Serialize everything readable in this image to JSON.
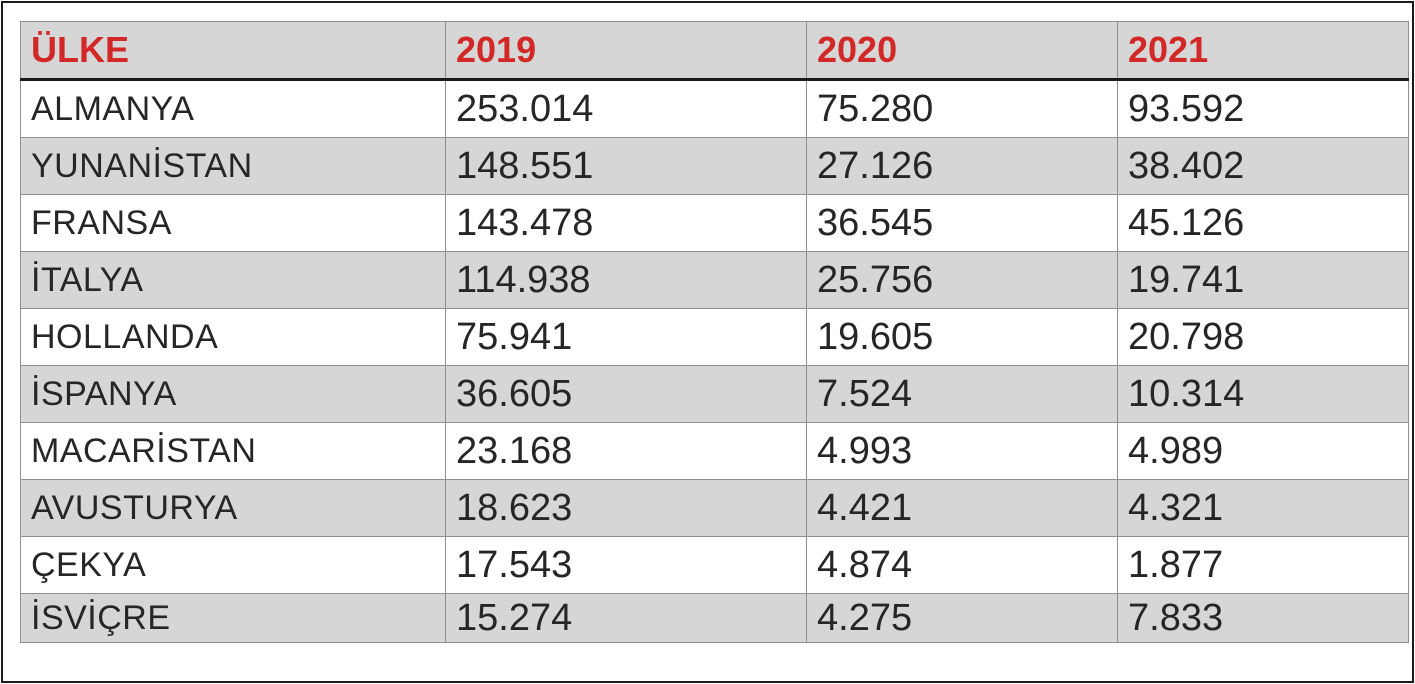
{
  "table": {
    "headers": [
      "ÜLKE",
      "2019",
      "2020",
      "2021"
    ],
    "rows": [
      [
        "ALMANYA",
        "253.014",
        "75.280",
        "93.592"
      ],
      [
        "YUNANİSTAN",
        "148.551",
        "27.126",
        "38.402"
      ],
      [
        "FRANSA",
        "143.478",
        "36.545",
        "45.126"
      ],
      [
        "İTALYA",
        "114.938",
        "25.756",
        "19.741"
      ],
      [
        "HOLLANDA",
        "75.941",
        "19.605",
        "20.798"
      ],
      [
        "İSPANYA",
        "36.605",
        "7.524",
        "10.314"
      ],
      [
        "MACARİSTAN",
        "23.168",
        "4.993",
        "4.989"
      ],
      [
        "AVUSTURYA",
        "18.623",
        "4.421",
        "4.321"
      ],
      [
        "ÇEKYA",
        "17.543",
        "4.874",
        "1.877"
      ],
      [
        "İSVİÇRE",
        "15.274",
        "4.275",
        "7.833"
      ]
    ]
  },
  "colors": {
    "header_text": "#d22828",
    "header_bg": "#d6d6d6",
    "stripe_bg": "#d6d6d6",
    "row_bg": "#ffffff",
    "text": "#262626"
  }
}
